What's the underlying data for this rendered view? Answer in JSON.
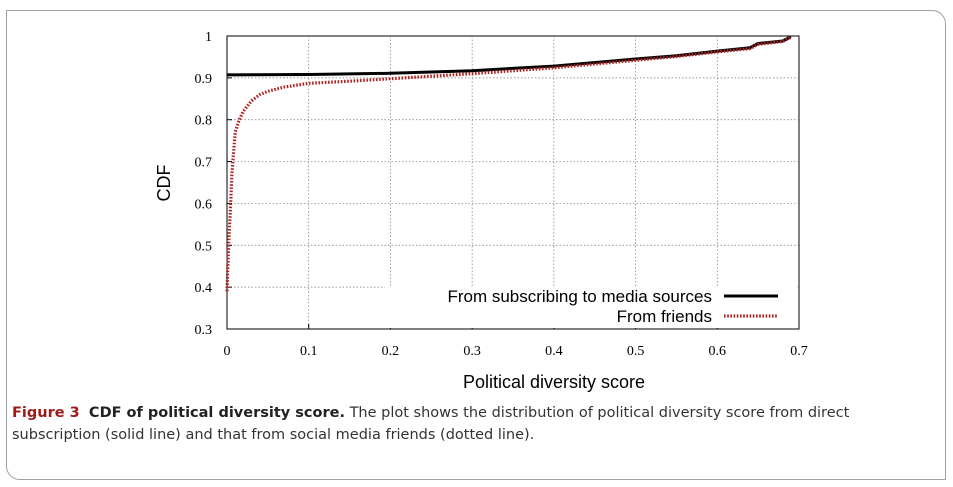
{
  "chart_data": {
    "type": "line",
    "title": "",
    "xlabel": "Political diversity score",
    "ylabel": "CDF",
    "xlim": [
      0,
      0.7
    ],
    "ylim": [
      0.3,
      1
    ],
    "xticks": [
      "0",
      "0.1",
      "0.2",
      "0.3",
      "0.4",
      "0.5",
      "0.6",
      "0.7"
    ],
    "yticks": [
      "0.3",
      "0.4",
      "0.5",
      "0.6",
      "0.7",
      "0.8",
      "0.9",
      "1"
    ],
    "grid": true,
    "legend_position": "bottom-right",
    "series": [
      {
        "name": "From subscribing to media sources",
        "color": "#000000",
        "style": "solid",
        "x": [
          0,
          0.1,
          0.2,
          0.3,
          0.4,
          0.5,
          0.55,
          0.6,
          0.64,
          0.65,
          0.68,
          0.69
        ],
        "y": [
          0.907,
          0.908,
          0.911,
          0.917,
          0.928,
          0.945,
          0.953,
          0.964,
          0.972,
          0.982,
          0.988,
          0.998
        ]
      },
      {
        "name": "From friends",
        "color": "#b22222",
        "style": "dotted",
        "x": [
          0,
          0.002,
          0.004,
          0.006,
          0.008,
          0.01,
          0.015,
          0.02,
          0.03,
          0.04,
          0.05,
          0.07,
          0.1,
          0.15,
          0.2,
          0.3,
          0.4,
          0.5,
          0.55,
          0.6,
          0.64,
          0.65,
          0.68,
          0.69
        ],
        "y": [
          0.39,
          0.5,
          0.58,
          0.67,
          0.72,
          0.77,
          0.8,
          0.82,
          0.845,
          0.86,
          0.868,
          0.878,
          0.887,
          0.892,
          0.898,
          0.91,
          0.924,
          0.942,
          0.951,
          0.962,
          0.97,
          0.98,
          0.987,
          0.997
        ]
      }
    ]
  },
  "caption": {
    "figure_label": "Figure 3",
    "figure_title": "CDF of political diversity score.",
    "text": "The plot shows the distribution of political diversity score from direct subscription (solid line) and that from social media friends (dotted line)."
  }
}
